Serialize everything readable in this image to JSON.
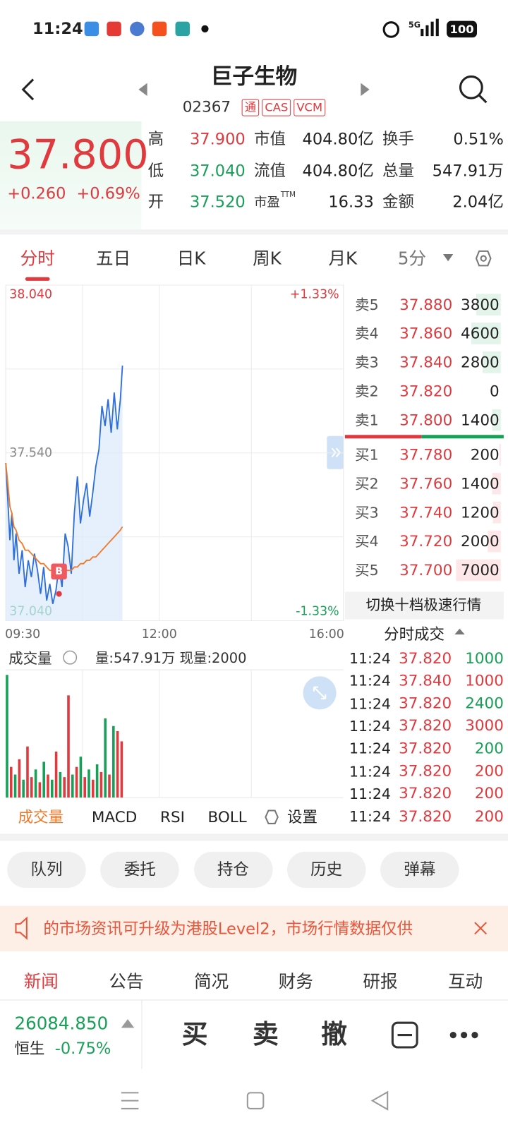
{
  "status_bar": {
    "time": "11:24",
    "network": "5G",
    "battery": "100"
  },
  "header": {
    "title": "巨子生物",
    "code": "02367",
    "badges": [
      "通",
      "CAS",
      "VCM"
    ]
  },
  "quote": {
    "price": "37.800",
    "change": "+0.260",
    "change_pct": "+0.69%",
    "stats": [
      [
        {
          "label": "高",
          "value": "37.900",
          "color": "#e0393e"
        },
        {
          "label": "市值",
          "value": "404.80亿"
        },
        {
          "label": "换手",
          "value": "0.51%"
        }
      ],
      [
        {
          "label": "低",
          "value": "37.040",
          "color": "#18a058"
        },
        {
          "label": "流值",
          "value": "404.80亿"
        },
        {
          "label": "总量",
          "value": "547.91万"
        }
      ],
      [
        {
          "label": "开",
          "value": "37.520",
          "color": "#18a058"
        },
        {
          "label": "市盈",
          "sup": "TTM",
          "value": "16.33"
        },
        {
          "label": "金额",
          "value": "2.04亿"
        }
      ]
    ]
  },
  "tabs": {
    "items": [
      "分时",
      "五日",
      "日K",
      "周K",
      "月K",
      "5分"
    ],
    "active": 0
  },
  "intraday": {
    "type": "line",
    "ylim": [
      37.04,
      38.04
    ],
    "yticks": [
      {
        "value": 38.04,
        "label": "38.040"
      },
      {
        "value": 37.79,
        "label": null
      },
      {
        "value": 37.54,
        "label": "37.540"
      },
      {
        "value": 37.29,
        "label": null
      },
      {
        "value": 37.04,
        "label": "37.040"
      }
    ],
    "ytick_colors": [
      "#e0393e",
      null,
      "#888888",
      null,
      "#18a058"
    ],
    "pct_labels": [
      "+1.33%",
      "-1.33%"
    ],
    "xlim": [
      "09:30",
      "16:00"
    ],
    "xticks": [
      "09:30",
      "12:00",
      "16:00"
    ],
    "xgrid": [
      "10:45",
      "14:30"
    ],
    "x": [
      "09:30",
      "09:32",
      "09:34",
      "09:36",
      "09:38",
      "09:40",
      "09:43",
      "09:46",
      "09:49",
      "09:52",
      "09:55",
      "09:58",
      "10:01",
      "10:04",
      "10:07",
      "10:10",
      "10:13",
      "10:16",
      "10:19",
      "10:22",
      "10:25",
      "10:28",
      "10:31",
      "10:34",
      "10:37",
      "10:40",
      "10:43",
      "10:46",
      "10:49",
      "10:52",
      "10:55",
      "10:58",
      "11:01",
      "11:04",
      "11:07",
      "11:10",
      "11:13",
      "11:16",
      "11:19",
      "11:22",
      "11:24"
    ],
    "series": [
      {
        "color": "#2f6fdc",
        "values": [
          37.51,
          37.4,
          37.28,
          37.36,
          37.22,
          37.3,
          37.18,
          37.25,
          37.14,
          37.22,
          37.17,
          37.24,
          37.19,
          37.12,
          37.2,
          37.1,
          37.15,
          37.09,
          37.13,
          37.2,
          37.14,
          37.3,
          37.26,
          37.18,
          37.36,
          37.47,
          37.33,
          37.4,
          37.45,
          37.35,
          37.42,
          37.5,
          37.55,
          37.68,
          37.62,
          37.7,
          37.6,
          37.72,
          37.61,
          37.7,
          37.8
        ]
      },
      {
        "color": "#f07a2a",
        "values": [
          37.51,
          37.45,
          37.38,
          37.36,
          37.32,
          37.31,
          37.28,
          37.27,
          37.25,
          37.25,
          37.24,
          37.23,
          37.22,
          37.21,
          37.21,
          37.2,
          37.19,
          37.19,
          37.19,
          37.19,
          37.19,
          37.19,
          37.19,
          37.19,
          37.2,
          37.2,
          37.21,
          37.21,
          37.22,
          37.22,
          37.23,
          37.23,
          37.24,
          37.25,
          37.26,
          37.27,
          37.28,
          37.29,
          37.3,
          37.31,
          37.32
        ]
      }
    ],
    "buy_marker": {
      "x": "10:22",
      "price": 37.12,
      "label": "B"
    }
  },
  "volume": {
    "type": "bar",
    "title": "成交量",
    "summary": "量:547.91万 现量:2000",
    "ylim": [
      0,
      50000
    ],
    "x": [
      "09:30",
      "09:34",
      "09:38",
      "09:42",
      "09:46",
      "09:50",
      "09:54",
      "09:58",
      "10:02",
      "10:06",
      "10:10",
      "10:14",
      "10:18",
      "10:22",
      "10:26",
      "10:30",
      "10:34",
      "10:38",
      "10:42",
      "10:46",
      "10:50",
      "10:54",
      "10:58",
      "11:02",
      "11:06",
      "11:10",
      "11:14",
      "11:18",
      "11:22"
    ],
    "values": [
      48000,
      12000,
      9000,
      15000,
      7000,
      20000,
      8000,
      11000,
      6000,
      14000,
      9000,
      7000,
      18000,
      10000,
      8000,
      40000,
      9000,
      12000,
      16000,
      8000,
      11000,
      7000,
      13000,
      10000,
      31000,
      9000,
      28000,
      26000,
      22000
    ],
    "colors": [
      "#18a058",
      "#e0393e",
      "#18a058",
      "#e0393e",
      "#18a058",
      "#e0393e",
      "#e0393e",
      "#18a058",
      "#e0393e",
      "#18a058",
      "#e0393e",
      "#18a058",
      "#e0393e",
      "#18a058",
      "#e0393e",
      "#e0393e",
      "#18a058",
      "#e0393e",
      "#18a058",
      "#e0393e",
      "#18a058",
      "#e0393e",
      "#18a058",
      "#e0393e",
      "#18a058",
      "#e0393e",
      "#18a058",
      "#e0393e",
      "#e0393e"
    ],
    "indicators": [
      "成交量",
      "MACD",
      "RSI",
      "BOLL"
    ],
    "settings": "设置"
  },
  "order_book": {
    "asks": [
      {
        "label": "卖5",
        "price": "37.880",
        "volume": 3800
      },
      {
        "label": "卖4",
        "price": "37.860",
        "volume": 4600
      },
      {
        "label": "卖3",
        "price": "37.840",
        "volume": 2800
      },
      {
        "label": "卖2",
        "price": "37.820",
        "volume": 0
      },
      {
        "label": "卖1",
        "price": "37.800",
        "volume": 1400
      }
    ],
    "bids": [
      {
        "label": "买1",
        "price": "37.780",
        "volume": 200
      },
      {
        "label": "买2",
        "price": "37.760",
        "volume": 1400
      },
      {
        "label": "买3",
        "price": "37.740",
        "volume": 1200
      },
      {
        "label": "买4",
        "price": "37.720",
        "volume": 2000
      },
      {
        "label": "买5",
        "price": "37.700",
        "volume": 7000
      }
    ],
    "toggle": "切换十档极速行情"
  },
  "trades": {
    "title": "分时成交",
    "rows": [
      {
        "time": "11:24",
        "price": "37.820",
        "volume": 1000,
        "color": "#18a058"
      },
      {
        "time": "11:24",
        "price": "37.840",
        "volume": 1000,
        "color": "#e0393e"
      },
      {
        "time": "11:24",
        "price": "37.820",
        "volume": 2400,
        "color": "#18a058"
      },
      {
        "time": "11:24",
        "price": "37.820",
        "volume": 3000,
        "color": "#e0393e"
      },
      {
        "time": "11:24",
        "price": "37.820",
        "volume": 200,
        "color": "#18a058"
      },
      {
        "time": "11:24",
        "price": "37.820",
        "volume": 200,
        "color": "#e0393e"
      },
      {
        "time": "11:24",
        "price": "37.820",
        "volume": 200,
        "color": "#e0393e"
      },
      {
        "time": "11:24",
        "price": "37.820",
        "volume": 200,
        "color": "#e0393e"
      }
    ]
  },
  "actions": [
    "队列",
    "委托",
    "持仓",
    "历史",
    "弹幕"
  ],
  "banner": {
    "text": "的市场资讯可升级为港股Level2，市场行情数据仅供"
  },
  "news_tabs": {
    "items": [
      "新闻",
      "公告",
      "简况",
      "财务",
      "研报",
      "互动"
    ],
    "active": 0
  },
  "bottom_bar": {
    "index_value": "26084.850",
    "index_name": "恒生",
    "index_change": "-0.75%",
    "buttons": [
      "买",
      "卖",
      "撤"
    ]
  }
}
